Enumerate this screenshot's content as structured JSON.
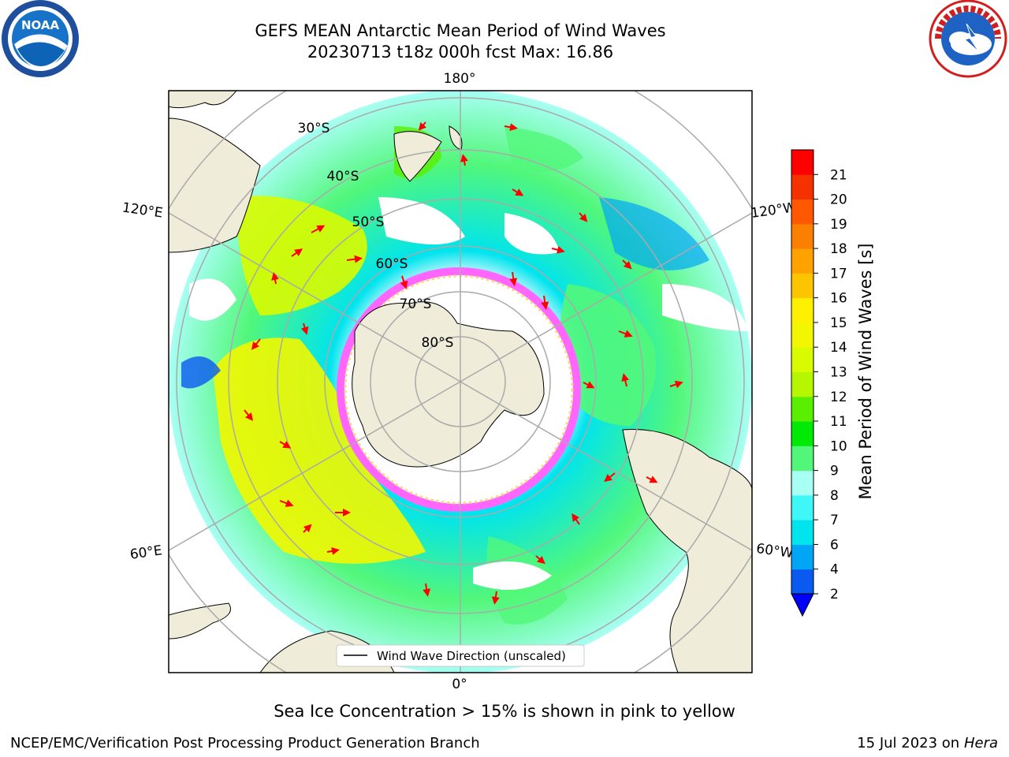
{
  "title": {
    "line1": "GEFS MEAN Antarctic Mean Period of Wind Waves",
    "line2": "20230713 t18z 000h fcst   Max: 16.86"
  },
  "map": {
    "projection": "south polar stereographic",
    "longitude_labels": [
      "180°",
      "120°E",
      "120°W",
      "60°E",
      "60°W",
      "0°"
    ],
    "latitude_labels": [
      "30°S",
      "40°S",
      "50°S",
      "60°S",
      "70°S",
      "80°S"
    ],
    "legend_label": "Wind Wave Direction (unscaled)"
  },
  "colorbar": {
    "label": "Mean Period of Wind Waves [s]",
    "ticks": [
      "2",
      "4",
      "6",
      "7",
      "8",
      "9",
      "10",
      "11",
      "12",
      "13",
      "14",
      "15",
      "16",
      "17",
      "18",
      "19",
      "20",
      "21"
    ],
    "colors": [
      "#0a59f0",
      "#00a6f5",
      "#00e4ee",
      "#3ff7f7",
      "#a8fff4",
      "#52f77a",
      "#00ea06",
      "#5aef00",
      "#b6f700",
      "#d9fb00",
      "#f2f700",
      "#fff000",
      "#fcc500",
      "#ffa200",
      "#fb7f00",
      "#ff5800",
      "#f53100",
      "#fe0000"
    ],
    "under_color": "#0000ff"
  },
  "logos": {
    "noaa": {
      "text": "NOAA",
      "ring_text": "NATIONAL OCEANIC AND ATMOSPHERIC ADMINISTRATION · U.S. DEPARTMENT OF COMMERCE"
    },
    "nws": {
      "ring_text": "NATIONAL WEATHER SERVICE"
    }
  },
  "ice_note": "Sea Ice Concentration > 15% is shown in pink to yellow",
  "footer": {
    "left": "NCEP/EMC/Verification Post Processing Product Generation Branch",
    "right_date": "15 Jul 2023 on ",
    "right_host": "Hera"
  }
}
